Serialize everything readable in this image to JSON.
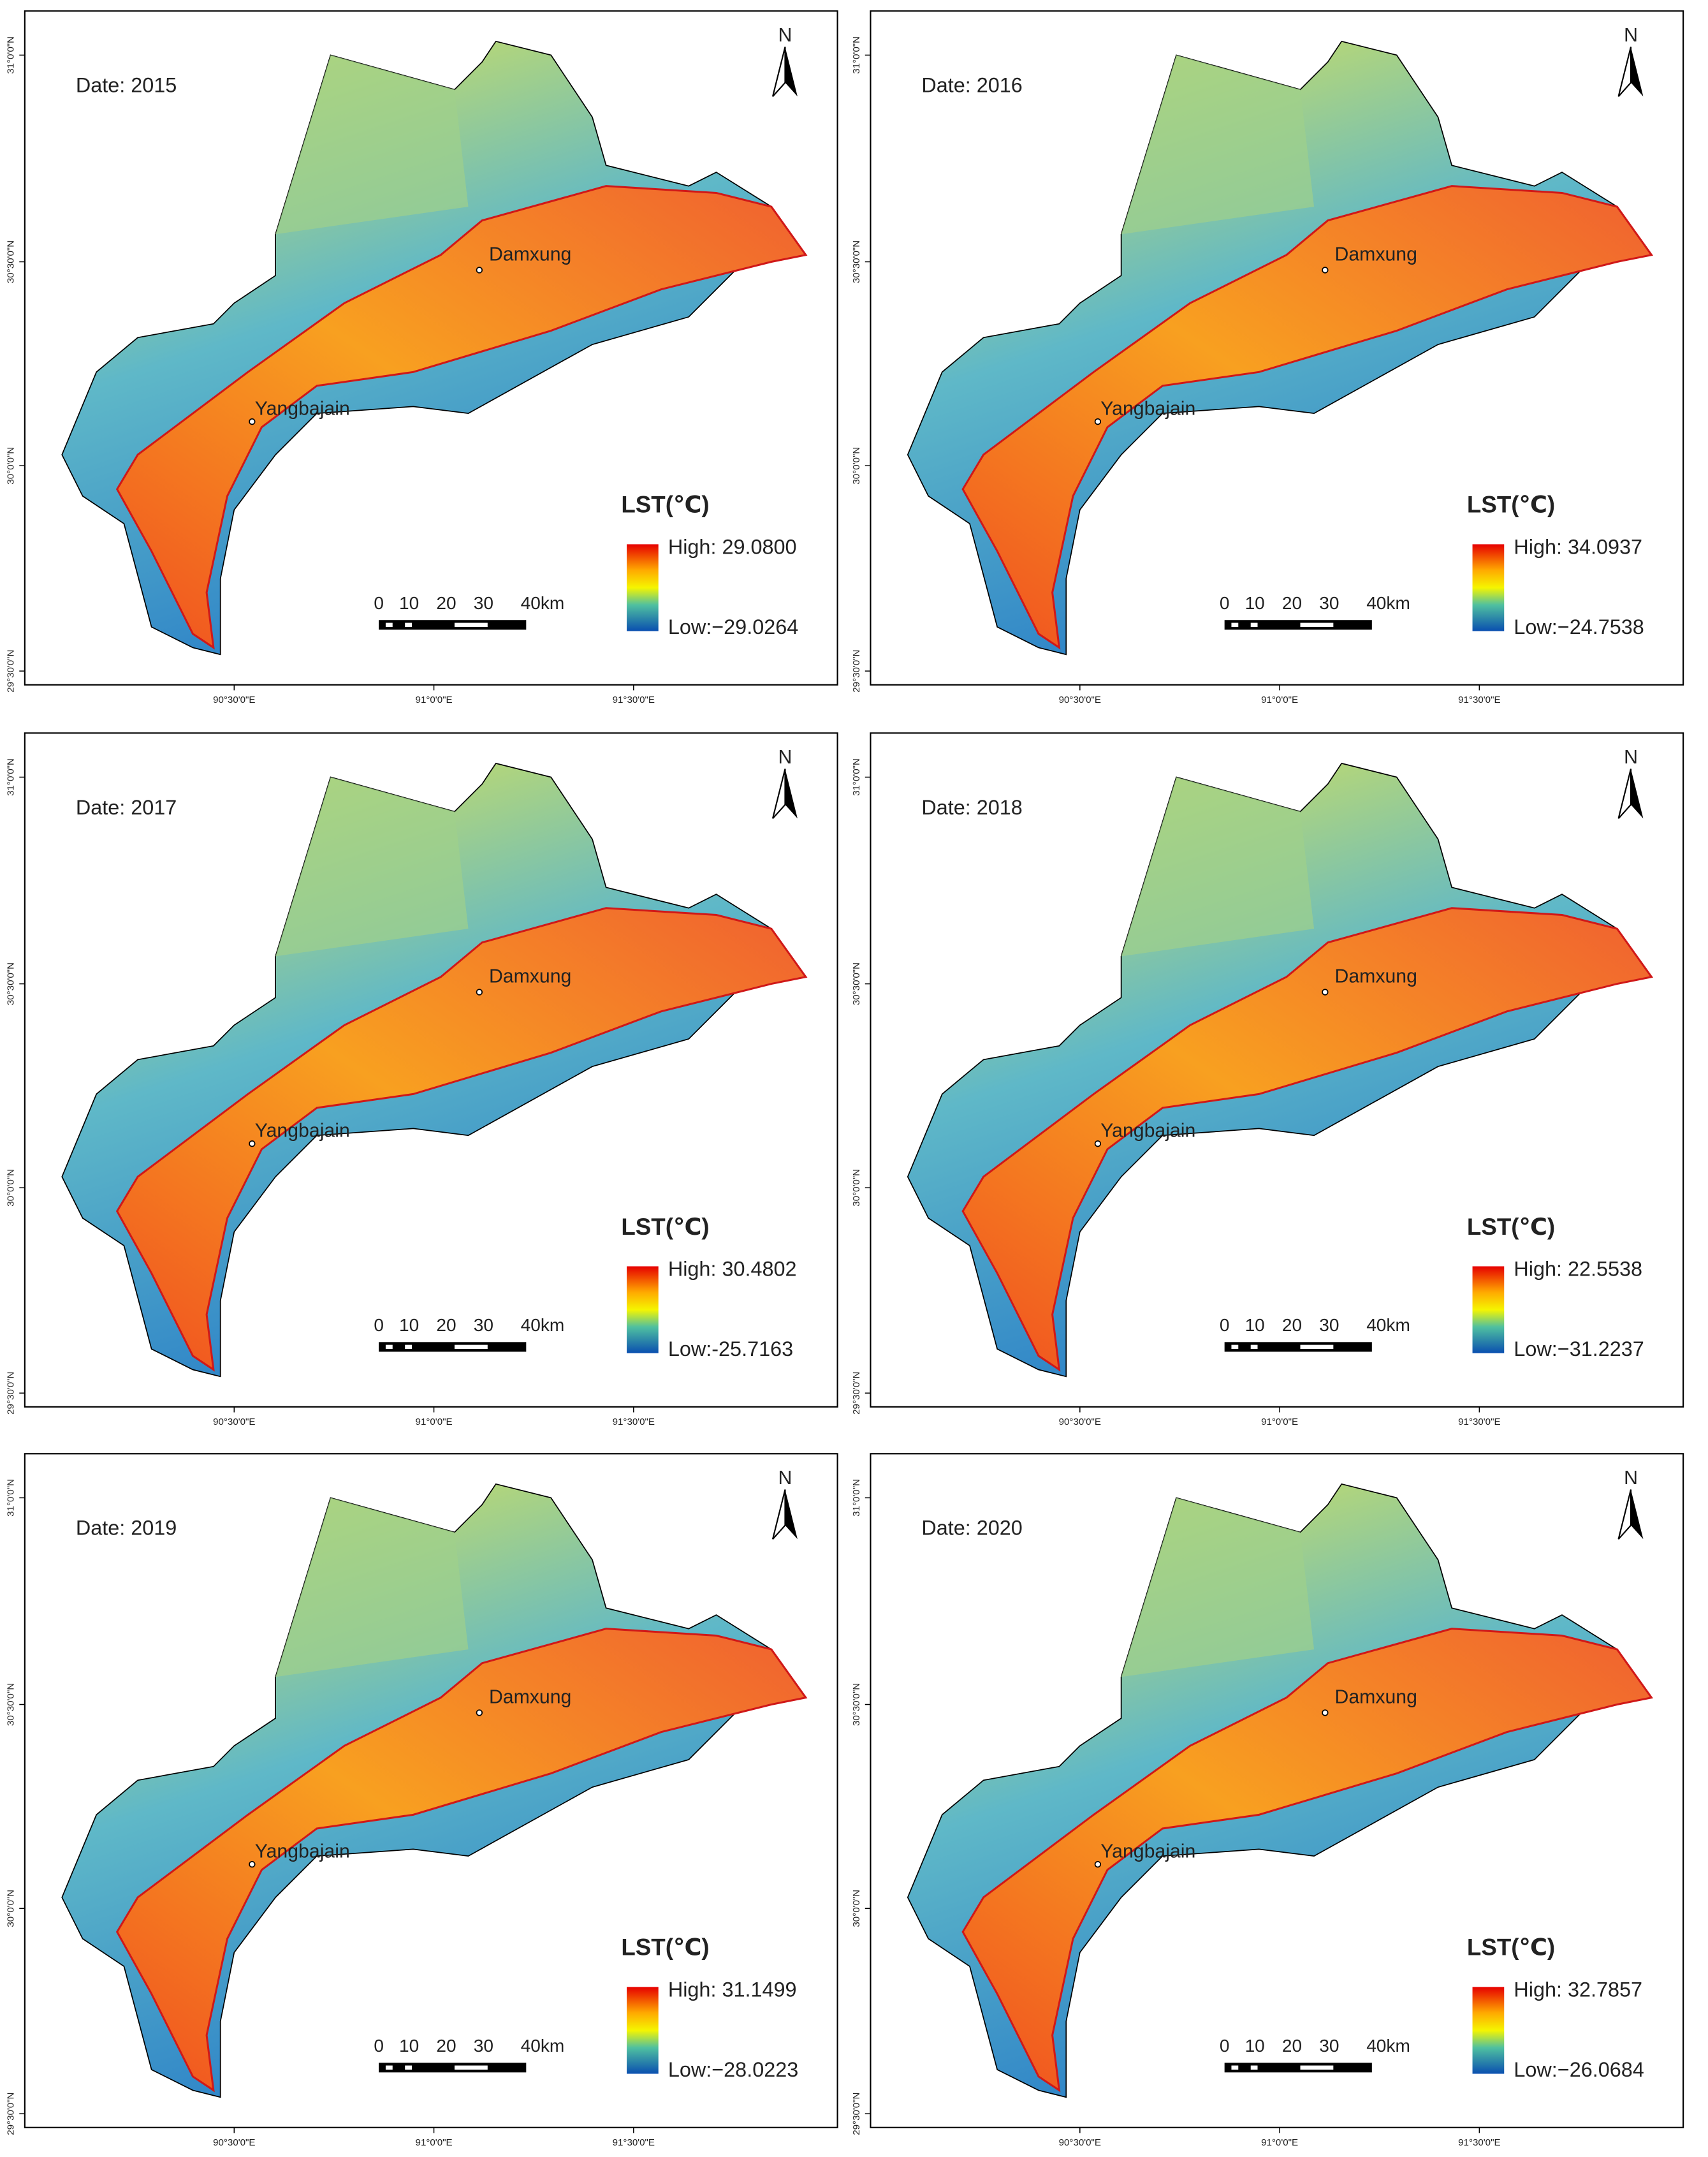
{
  "panels": [
    {
      "date": "Date: 2015",
      "high": "High: 29.0800",
      "low": "Low:−29.0264"
    },
    {
      "date": "Date: 2016",
      "high": "High: 34.0937",
      "low": "Low:−24.7538"
    },
    {
      "date": "Date: 2017",
      "high": "High: 30.4802",
      "low": "Low:-25.7163"
    },
    {
      "date": "Date: 2018",
      "high": "High: 22.5538",
      "low": "Low:−31.2237"
    },
    {
      "date": "Date: 2019",
      "high": "High: 31.1499",
      "low": "Low:−28.0223"
    },
    {
      "date": "Date: 2020",
      "high": "High: 32.7857",
      "low": "Low:−26.0684"
    }
  ],
  "legend_title": "LST(℃)",
  "north": "N",
  "places": [
    "Damxung",
    "Yangbajain"
  ],
  "scale_labels": [
    "0",
    "10",
    "20",
    "30",
    "40km"
  ],
  "lat_labels": [
    "31°0'0\"N",
    "30°30'0\"N",
    "30°0'0\"N",
    "29°30'0\"N"
  ],
  "lon_labels": [
    "90°30'0\"E",
    "91°0'0\"E",
    "91°30'0\"E"
  ]
}
